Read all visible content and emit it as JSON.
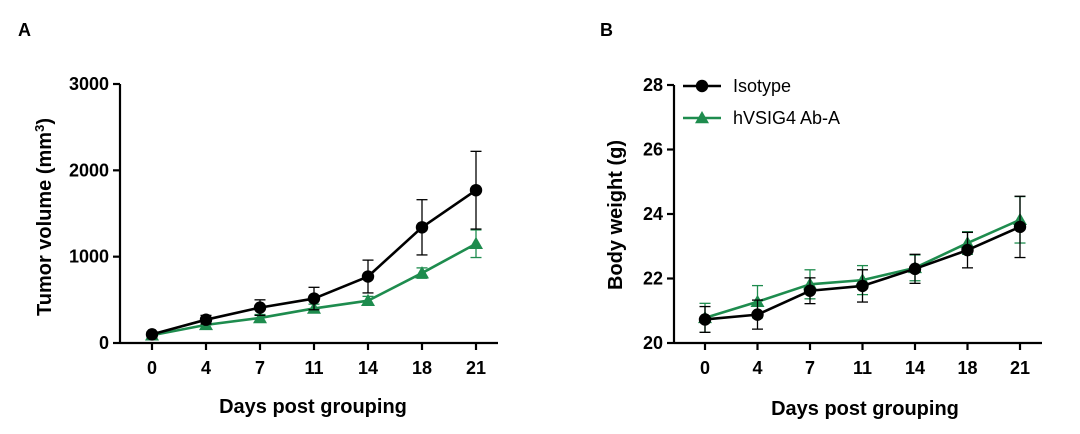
{
  "figure": {
    "panels": [
      "A",
      "B"
    ]
  },
  "colors": {
    "isotype": "#000000",
    "antibody": "#1e8c4e",
    "axis": "#000000"
  },
  "chart_data": [
    {
      "panel": "A",
      "type": "line",
      "categories": [
        "0",
        "4",
        "7",
        "11",
        "14",
        "18",
        "21"
      ],
      "x": [
        0,
        4,
        7,
        11,
        14,
        18,
        21
      ],
      "xlabel": "Days post grouping",
      "ylabel_main": "Tumor volume (mm",
      "ylabel_sup": "3",
      "ylabel_tail": ")",
      "ylim": [
        0,
        3000
      ],
      "yticks": [
        "0",
        "1000",
        "2000",
        "3000"
      ],
      "yticks_values": [
        0,
        1000,
        2000,
        3000
      ],
      "grid": false,
      "series": [
        {
          "key": "isotype",
          "marker": "circle",
          "values": [
            100,
            270,
            410,
            515,
            770,
            1340,
            1770
          ],
          "errors": [
            30,
            50,
            90,
            130,
            190,
            320,
            450
          ]
        },
        {
          "key": "antibody",
          "marker": "triangle",
          "values": [
            90,
            210,
            290,
            400,
            490,
            810,
            1150
          ],
          "errors": [
            20,
            40,
            40,
            50,
            50,
            60,
            160
          ]
        }
      ]
    },
    {
      "panel": "B",
      "type": "line",
      "categories": [
        "0",
        "4",
        "7",
        "11",
        "14",
        "18",
        "21"
      ],
      "x": [
        0,
        4,
        7,
        11,
        14,
        18,
        21
      ],
      "xlabel": "Days post grouping",
      "ylabel": "Body weight (g)",
      "ylim": [
        20,
        28
      ],
      "yticks": [
        "20",
        "22",
        "24",
        "26",
        "28"
      ],
      "yticks_values": [
        20,
        22,
        24,
        26,
        28
      ],
      "grid": false,
      "legend": {
        "position": "top-left",
        "entries": [
          {
            "key": "isotype",
            "label": "Isotype",
            "marker": "circle"
          },
          {
            "key": "antibody",
            "label": "hVSIG4 Ab-A",
            "marker": "triangle"
          }
        ]
      },
      "series": [
        {
          "key": "isotype",
          "name": "Isotype",
          "marker": "circle",
          "values": [
            20.73,
            20.88,
            21.62,
            21.77,
            22.3,
            22.88,
            23.6
          ],
          "errors": [
            0.4,
            0.45,
            0.4,
            0.5,
            0.45,
            0.55,
            0.95
          ]
        },
        {
          "key": "antibody",
          "name": "hVSIG4 Ab-A",
          "marker": "triangle",
          "values": [
            20.78,
            21.28,
            21.82,
            21.95,
            22.33,
            23.1,
            23.82
          ],
          "errors": [
            0.45,
            0.5,
            0.45,
            0.45,
            0.4,
            0.35,
            0.72
          ]
        }
      ]
    }
  ]
}
